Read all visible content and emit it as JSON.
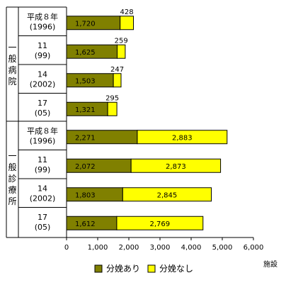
{
  "chart_data": {
    "type": "bar",
    "orientation": "horizontal",
    "stacked": true,
    "groups": [
      {
        "label": "一般病院",
        "categories": [
          {
            "year": "平成８年",
            "sub": "(1996)"
          },
          {
            "year": "11",
            "sub": "(99)"
          },
          {
            "year": "14",
            "sub": "(2002)"
          },
          {
            "year": "17",
            "sub": "(05)"
          }
        ],
        "with_delivery": [
          1720,
          1625,
          1503,
          1321
        ],
        "without_delivery": [
          428,
          259,
          247,
          295
        ],
        "without_labels": [
          "428",
          "259",
          "247",
          "295"
        ]
      },
      {
        "label": "一般診療所",
        "categories": [
          {
            "year": "平成８年",
            "sub": "(1996)"
          },
          {
            "year": "11",
            "sub": "(99)"
          },
          {
            "year": "14",
            "sub": "(2002)"
          },
          {
            "year": "17",
            "sub": "(05)"
          }
        ],
        "with_delivery": [
          2271,
          2072,
          1803,
          1612
        ],
        "without_delivery": [
          2883,
          2873,
          2845,
          2769
        ],
        "with_labels": [
          "2,271",
          "2,072",
          "1,803",
          "1,612"
        ],
        "without_labels": [
          "2,883",
          "2,873",
          "2,845",
          "2,769"
        ]
      }
    ],
    "hospital_with_labels": [
      "1,720",
      "1,625",
      "1,503",
      "1,321"
    ],
    "series": [
      {
        "name": "分娩あり",
        "color": "#808000"
      },
      {
        "name": "分娩なし",
        "color": "#ffff00"
      }
    ],
    "xlim": [
      0,
      6000
    ],
    "xticks": [
      0,
      1000,
      2000,
      3000,
      4000,
      5000,
      6000
    ],
    "xtick_labels": [
      "0",
      "1,000",
      "2,000",
      "3,000",
      "4,000",
      "5,000",
      "6,000"
    ],
    "xlabel": "施設",
    "legend_position": "bottom"
  }
}
